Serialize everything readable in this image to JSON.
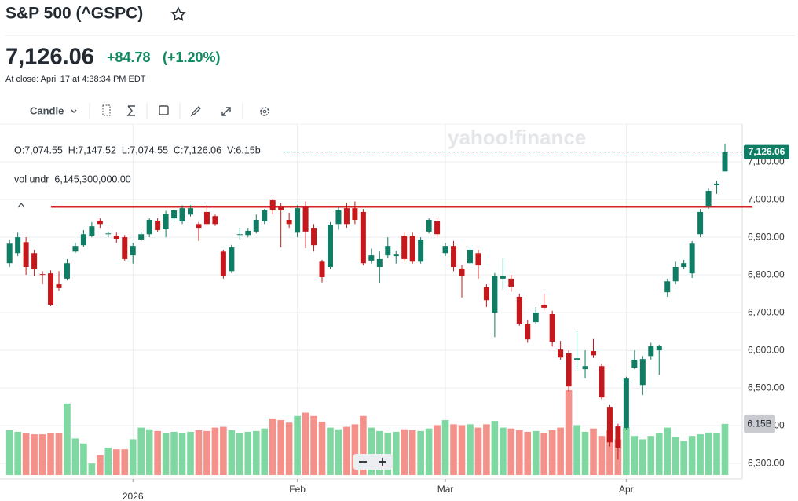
{
  "header": {
    "title": "S&P 500 (^GSPC)",
    "price": "7,126.06",
    "change": "+84.78",
    "change_pct": "(+1.20%)",
    "close_time": "At close: April 17 at 4:38:34 PM EDT"
  },
  "toolbar": {
    "chart_type": "Candle"
  },
  "chart_data": {
    "type": "candlestick",
    "watermark": "yahoo!finance",
    "ohlc_legend": "O:7,074.55  H:7,147.52  L:7,074.55  C:7,126.06  V:6.15b",
    "volume_legend": "vol undr  6,145,300,000.00",
    "last_price_label": "7,126.06",
    "last_volume_label": "6.15B",
    "up_color": "#0f7d63",
    "down_color": "#c4181c",
    "volume_up_color": "#7fd7a2",
    "volume_down_color": "#f4918b",
    "annotation_line": {
      "value": 6981,
      "color": "#d8201c"
    },
    "xlim": [
      -0.4,
      89.1
    ],
    "xticks": [
      {
        "value": 15,
        "label": "2026"
      },
      {
        "value": 35,
        "label": "Feb"
      },
      {
        "value": 53,
        "label": "Mar"
      },
      {
        "value": 75,
        "label": "Apr"
      }
    ],
    "ylim": [
      6269,
      7196
    ],
    "yticks": [
      {
        "value": 6300,
        "label": "6,300.00"
      },
      {
        "value": 6400,
        "label": "6,400.00"
      },
      {
        "value": 6500,
        "label": "6,500.00"
      },
      {
        "value": 6600,
        "label": "6,600.00"
      },
      {
        "value": 6700,
        "label": "6,700.00"
      },
      {
        "value": 6800,
        "label": "6,800.00"
      },
      {
        "value": 6900,
        "label": "6,900.00"
      },
      {
        "value": 7000,
        "label": "7,000.00"
      },
      {
        "value": 7100,
        "label": "7,100.00"
      }
    ],
    "y2lim": [
      0,
      42
    ],
    "grid": true,
    "open": [
      6831,
      6858,
      6887,
      6858,
      6802,
      6804,
      6775,
      6790,
      6862,
      6879,
      6904,
      6944,
      6908,
      6904,
      6900,
      6852,
      6894,
      6908,
      6944,
      6921,
      6950,
      6942,
      6960,
      6935,
      6967,
      6956,
      6862,
      6810,
      6906,
      6906,
      6915,
      6942,
      6998,
      6983,
      6946,
      6912,
      6983,
      6925,
      6835,
      6821,
      6935,
      6977,
      6977,
      6967,
      6838,
      6821,
      6852,
      6850,
      6904,
      6904,
      6835,
      6915,
      6942,
      6858,
      6877,
      6817,
      6831,
      6858,
      6767,
      6700,
      6790,
      6790,
      6742,
      6671,
      6675,
      6721,
      6696,
      6602,
      6592,
      6575,
      6550,
      6598,
      6558,
      6450,
      6398,
      6394,
      6554,
      6508,
      6585,
      6600,
      6754,
      6783,
      6821,
      6804,
      6908,
      6983,
      7038,
      7074.55
    ],
    "high": [
      6894,
      6912,
      6900,
      6867,
      6810,
      6812,
      6810,
      6842,
      6885,
      6919,
      6940,
      6950,
      6915,
      6912,
      6906,
      6885,
      6915,
      6950,
      6950,
      6970,
      6975,
      6985,
      6985,
      6940,
      6985,
      6960,
      6867,
      6880,
      6925,
      6925,
      6960,
      6975,
      7002,
      6992,
      6965,
      6985,
      6995,
      6935,
      6840,
      6940,
      6980,
      6990,
      6995,
      6975,
      6870,
      6862,
      6900,
      6865,
      6912,
      6912,
      6900,
      6950,
      6950,
      6885,
      6890,
      6825,
      6875,
      6867,
      6775,
      6805,
      6845,
      6800,
      6750,
      6680,
      6715,
      6750,
      6705,
      6625,
      6600,
      6650,
      6600,
      6630,
      6565,
      6455,
      6405,
      6530,
      6600,
      6585,
      6620,
      6615,
      6790,
      6835,
      6840,
      6890,
      6975,
      7029,
      7050,
      7147.52
    ],
    "low": [
      6821,
      6850,
      6800,
      6796,
      6775,
      6717,
      6758,
      6785,
      6858,
      6875,
      6900,
      6925,
      6900,
      6885,
      6838,
      6830,
      6890,
      6900,
      6915,
      6900,
      6940,
      6935,
      6955,
      6890,
      6930,
      6930,
      6790,
      6805,
      6895,
      6900,
      6910,
      6935,
      6960,
      6873,
      6925,
      6900,
      6871,
      6862,
      6780,
      6815,
      6920,
      6925,
      6935,
      6825,
      6830,
      6779,
      6845,
      6830,
      6835,
      6830,
      6830,
      6910,
      6900,
      6850,
      6810,
      6740,
      6825,
      6790,
      6715,
      6635,
      6760,
      6755,
      6665,
      6620,
      6670,
      6705,
      6610,
      6575,
      6490,
      6550,
      6525,
      6580,
      6470,
      6345,
      6310,
      6390,
      6550,
      6481,
      6575,
      6535,
      6742,
      6775,
      6815,
      6792,
      6900,
      6975,
      7015,
      7074.55
    ],
    "close": [
      6883,
      6900,
      6821,
      6815,
      6800,
      6721,
      6765,
      6831,
      6877,
      6908,
      6929,
      6935,
      6910,
      6896,
      6842,
      6877,
      6908,
      6946,
      6919,
      6962,
      6971,
      6977,
      6977,
      6925,
      6935,
      6935,
      6796,
      6873,
      6908,
      6917,
      6946,
      6971,
      6971,
      6971,
      6935,
      6977,
      6915,
      6879,
      6794,
      6933,
      6971,
      6935,
      6946,
      6831,
      6852,
      6842,
      6877,
      6854,
      6842,
      6835,
      6894,
      6946,
      6908,
      6877,
      6821,
      6796,
      6867,
      6825,
      6733,
      6796,
      6796,
      6769,
      6671,
      6629,
      6700,
      6713,
      6623,
      6581,
      6504,
      6579,
      6558,
      6587,
      6475,
      6356,
      6342,
      6525,
      6575,
      6577,
      6612,
      6612,
      6783,
      6821,
      6831,
      6883,
      6967,
      7023,
      7042,
      7126.06
    ],
    "volume": [
      5.4,
      5.2,
      5.0,
      4.9,
      4.9,
      5.0,
      5.0,
      8.6,
      4.4,
      3.8,
      1.4,
      2.4,
      3.3,
      3.1,
      3.1,
      4.3,
      5.7,
      5.5,
      5.3,
      5.0,
      5.2,
      5.0,
      5.2,
      5.4,
      5.3,
      5.7,
      5.8,
      5.4,
      5.0,
      5.2,
      5.3,
      5.6,
      6.8,
      6.6,
      6.3,
      7.1,
      7.5,
      7.1,
      6.4,
      5.7,
      5.5,
      5.8,
      6.1,
      7.1,
      5.7,
      5.3,
      5.1,
      5.2,
      5.5,
      5.4,
      5.3,
      5.6,
      6.0,
      6.6,
      6.1,
      6.0,
      6.1,
      5.7,
      6.1,
      6.5,
      5.7,
      5.6,
      5.4,
      5.2,
      5.3,
      5.1,
      5.4,
      5.7,
      10.2,
      6.0,
      5.2,
      5.6,
      4.7,
      5.4,
      4.3,
      5.7,
      4.7,
      4.3,
      4.7,
      5.0,
      5.7,
      4.6,
      4.1,
      4.7,
      4.9,
      5.1,
      5.0,
      6.15
    ]
  }
}
